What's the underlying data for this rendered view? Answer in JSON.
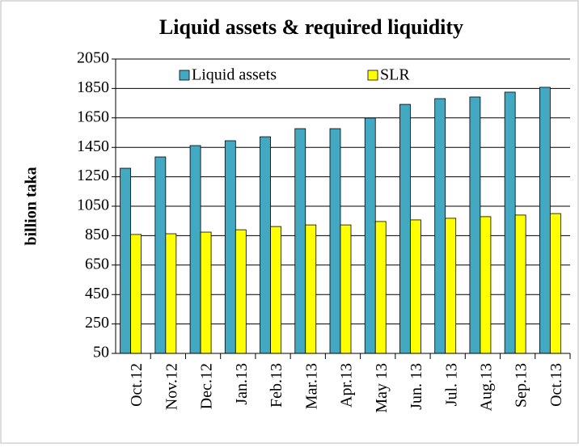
{
  "chart_data": {
    "type": "bar",
    "title": "Liquid  assets & required liquidity",
    "ylabel": "billion taka",
    "categories": [
      "Oct.12",
      "Nov.12",
      "Dec.12",
      "Jan.13",
      "Feb.13",
      "Mar.13",
      "Apr.13",
      "May 13",
      "Jun. 13",
      "Jul. 13",
      "Aug.13",
      "Sep.13",
      "Oct.13"
    ],
    "series": [
      {
        "name": "Liquid assets",
        "color": "#43a9c3",
        "values": [
          1308,
          1385,
          1462,
          1495,
          1522,
          1577,
          1577,
          1649,
          1742,
          1781,
          1792,
          1825,
          1858
        ]
      },
      {
        "name": "SLR",
        "color": "#ffff00",
        "values": [
          858,
          863,
          874,
          890,
          912,
          923,
          923,
          946,
          957,
          968,
          979,
          990,
          1000
        ]
      }
    ],
    "ylim": [
      50,
      2050
    ],
    "yticks": [
      50,
      250,
      450,
      650,
      850,
      1050,
      1250,
      1450,
      1650,
      1850,
      2050
    ],
    "grid": true,
    "legend": "top"
  }
}
